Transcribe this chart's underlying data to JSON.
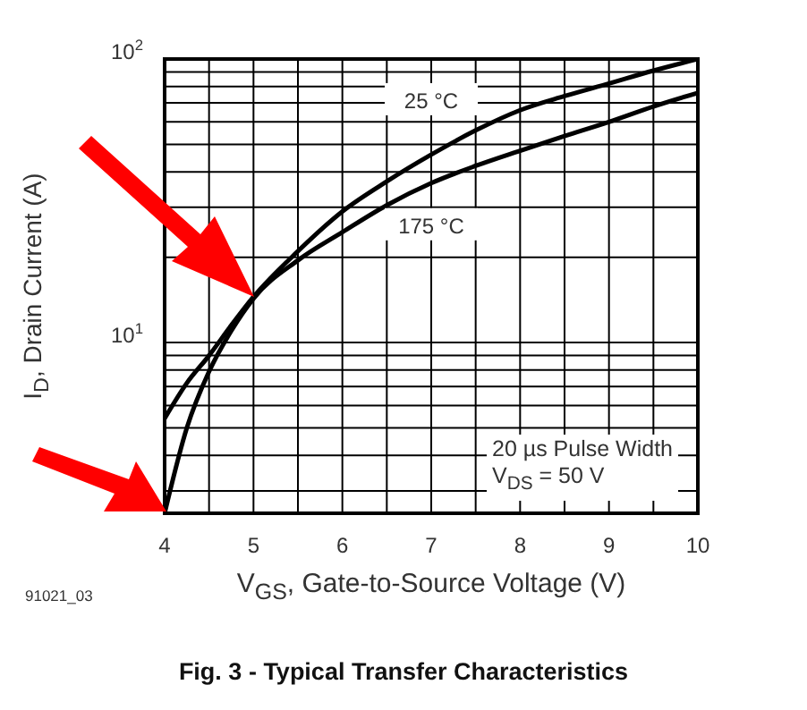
{
  "chart_data": {
    "type": "line",
    "title": "Fig. 3 - Typical Transfer Characteristics",
    "xlabel": "V$_{GS}$, Gate-to-Source Voltage (V)",
    "ylabel": "I$_{D}$, Drain Current (A)",
    "annotations": [
      "20 µs Pulse Width",
      "V$_{DS}$ = 50 V",
      "91021_03"
    ],
    "series": [
      {
        "name": "25 °C",
        "color": "#000000",
        "x": [
          4,
          4.25,
          4.5,
          4.75,
          5,
          5.5,
          6,
          6.5,
          7,
          7.5,
          8,
          8.5,
          9,
          9.5,
          10
        ],
        "values": [
          5.4,
          7.2,
          9,
          11.5,
          14.5,
          21,
          29,
          37,
          46,
          56,
          66,
          74,
          82,
          91,
          100
        ]
      },
      {
        "name": "175 °C",
        "color": "#000000",
        "x": [
          4,
          4.25,
          4.5,
          4.75,
          5,
          5.5,
          6,
          6.5,
          7,
          7.5,
          8,
          8.5,
          9,
          9.5,
          10
        ],
        "values": [
          2.5,
          5,
          7.9,
          11,
          14.3,
          19.5,
          24.5,
          30.5,
          36.5,
          42,
          47.5,
          53.5,
          60,
          68,
          76
        ]
      }
    ],
    "log": "y",
    "xlim": [
      4,
      10
    ],
    "ylim": [
      2.5,
      100
    ],
    "xticks": [
      4,
      {
        "value": 4.5,
        "label": null
      },
      5,
      {
        "value": 5.5,
        "label": null
      },
      6,
      {
        "value": 6.5,
        "label": null
      },
      7,
      {
        "value": 7.5,
        "label": null
      },
      8,
      {
        "value": 8.5,
        "label": null
      },
      9,
      {
        "value": 9.5,
        "label": null
      },
      10
    ],
    "yticks": [
      {
        "value": 3,
        "label": null
      },
      {
        "value": 4,
        "label": null
      },
      {
        "value": 5,
        "label": null
      },
      {
        "value": 6,
        "label": null
      },
      {
        "value": 7,
        "label": null
      },
      {
        "value": 8,
        "label": null
      },
      {
        "value": 9,
        "label": null
      },
      {
        "value": 10,
        "label": "10$^{1}$"
      },
      {
        "value": 20,
        "label": null
      },
      {
        "value": 30,
        "label": null
      },
      {
        "value": 40,
        "label": null
      },
      {
        "value": 50,
        "label": null
      },
      {
        "value": 60,
        "label": null
      },
      {
        "value": 70,
        "label": null
      },
      {
        "value": 80,
        "label": null
      },
      {
        "value": 90,
        "label": null
      },
      {
        "value": 100,
        "label": "10$^{2}$"
      }
    ],
    "grid": true,
    "legend": false,
    "marker": "none",
    "line_style": "solid"
  }
}
